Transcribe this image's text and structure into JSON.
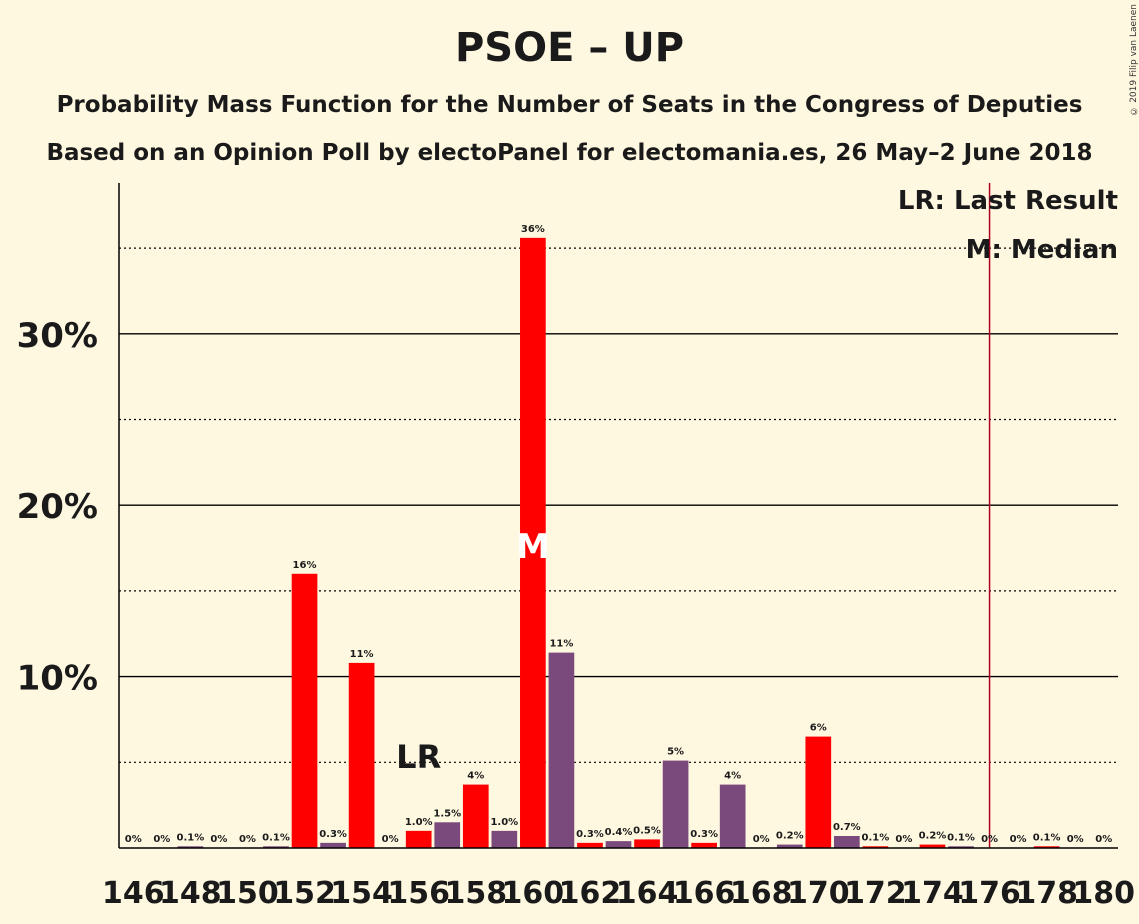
{
  "title": "PSOE – UP",
  "subtitle1": "Probability Mass Function for the Number of Seats in the Congress of Deputies",
  "subtitle2": "Based on an Opinion Poll by electoPanel for electomania.es, 26 May–2 June 2018",
  "copyright": "© 2019 Filip van Laenen",
  "chart_data": {
    "type": "bar",
    "x": [
      146,
      147,
      148,
      149,
      150,
      151,
      152,
      153,
      154,
      155,
      156,
      157,
      158,
      159,
      160,
      161,
      162,
      163,
      164,
      165,
      166,
      167,
      168,
      169,
      170,
      171,
      172,
      173,
      174,
      175,
      176,
      177,
      178,
      179,
      180
    ],
    "values": [
      0,
      0,
      0.1,
      0,
      0,
      0.1,
      16.0,
      0.3,
      10.8,
      0,
      1.0,
      1.5,
      3.7,
      1.0,
      35.6,
      11.4,
      0.3,
      0.4,
      0.5,
      5.1,
      0.3,
      3.7,
      0,
      0.2,
      6.5,
      0.7,
      0.1,
      0,
      0.2,
      0.1,
      0,
      0,
      0.1,
      0,
      0
    ],
    "labels": [
      "0%",
      "0%",
      "0.1%",
      "0%",
      "0%",
      "0.1%",
      "16%",
      "0.3%",
      "11%",
      "0%",
      "1.0%",
      "1.5%",
      "4%",
      "1.0%",
      "36%",
      "11%",
      "0.3%",
      "0.4%",
      "0.5%",
      "5%",
      "0.3%",
      "4%",
      "0%",
      "0.2%",
      "6%",
      "0.7%",
      "0.1%",
      "0%",
      "0.2%",
      "0.1%",
      "0%",
      "0%",
      "0.1%",
      "0%",
      "0%"
    ],
    "colors": {
      "red": "#FF0000",
      "purple": "#7A4A7C",
      "background": "#FFF8E1",
      "lastresult_line": "#B00020"
    },
    "bar_colors": [
      "purple",
      "purple",
      "purple",
      "purple",
      "purple",
      "purple",
      "red",
      "purple",
      "red",
      "purple",
      "red",
      "purple",
      "red",
      "purple",
      "red",
      "purple",
      "red",
      "purple",
      "red",
      "purple",
      "red",
      "purple",
      "red",
      "purple",
      "red",
      "purple",
      "red",
      "purple",
      "red",
      "purple",
      "red",
      "purple",
      "red",
      "purple",
      "red"
    ],
    "x_tick_labels": [
      "146",
      "148",
      "150",
      "152",
      "154",
      "156",
      "158",
      "160",
      "162",
      "164",
      "166",
      "168",
      "170",
      "172",
      "174",
      "176",
      "178",
      "180"
    ],
    "y_ticks": [
      10,
      20,
      30
    ],
    "y_tick_labels": [
      "10%",
      "20%",
      "30%"
    ],
    "dotted_lines": [
      5,
      15,
      25,
      35
    ],
    "ylim": [
      0,
      38.8
    ],
    "last_result_seat": 156,
    "last_result_label": "LR",
    "median_seat": 160,
    "median_label": "M",
    "majority_seat": 176,
    "legend": {
      "lr": "LR: Last Result",
      "m": "M: Median"
    }
  }
}
